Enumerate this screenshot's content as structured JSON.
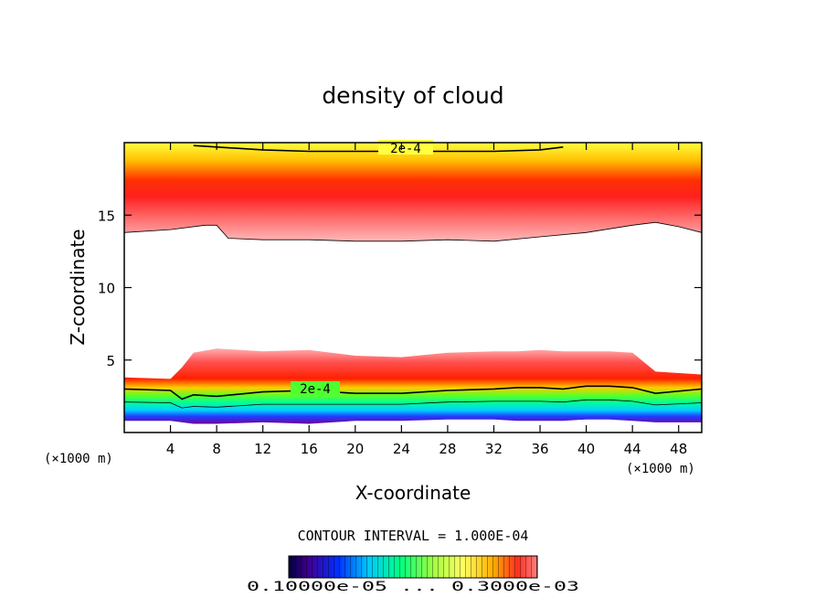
{
  "chart_data": {
    "type": "heatmap",
    "title": "density of cloud",
    "xlabel": "X-coordinate",
    "ylabel": "Z-coordinate",
    "x_unit_label": "(×1000 m)",
    "xlim": [
      0,
      50
    ],
    "ylim": [
      0,
      20
    ],
    "x_ticks": [
      4,
      8,
      12,
      16,
      20,
      24,
      28,
      32,
      36,
      40,
      44,
      48
    ],
    "y_ticks": [
      5,
      10,
      15
    ],
    "contour_interval_text": "CONTOUR INTERVAL = 1.000E-04",
    "contour_label": "2e-4",
    "colorbar_labels_text": "0.10000e-05 ... 0.3000e-03",
    "colorbar_range": [
      1e-06,
      0.0003
    ],
    "upper_layer": {
      "x": [
        0,
        4,
        7,
        8,
        9,
        12,
        16,
        20,
        24,
        28,
        32,
        36,
        40,
        44,
        46,
        48,
        50
      ],
      "bottom": [
        13.8,
        14.0,
        14.3,
        14.3,
        13.4,
        13.3,
        13.3,
        13.2,
        13.2,
        13.3,
        13.2,
        13.5,
        13.8,
        14.3,
        14.5,
        14.2,
        13.8
      ],
      "top": [
        20,
        20,
        20,
        20,
        20,
        20,
        20,
        20,
        20,
        20,
        20,
        20,
        20,
        20,
        20,
        20,
        20
      ],
      "peak_z": [
        16.0,
        16.1,
        16.3,
        16.3,
        15.8,
        15.7,
        15.6,
        15.6,
        15.6,
        15.6,
        15.6,
        15.7,
        15.8,
        16.2,
        16.5,
        16.2,
        15.9
      ]
    },
    "lower_layer": {
      "x": [
        0,
        4,
        5,
        6,
        8,
        12,
        16,
        20,
        24,
        28,
        32,
        34,
        36,
        38,
        40,
        42,
        44,
        46,
        50
      ],
      "top": [
        3.8,
        3.7,
        4.5,
        5.5,
        5.8,
        5.6,
        5.7,
        5.3,
        5.2,
        5.5,
        5.6,
        5.6,
        5.7,
        5.6,
        5.6,
        5.6,
        5.5,
        4.2,
        4.0
      ],
      "contour_2e4": [
        3.0,
        2.9,
        2.3,
        2.6,
        2.5,
        2.8,
        2.9,
        2.7,
        2.7,
        2.9,
        3.0,
        3.1,
        3.1,
        3.0,
        3.2,
        3.2,
        3.1,
        2.7,
        3.0
      ],
      "bottom": [
        0.8,
        0.8,
        0.7,
        0.6,
        0.6,
        0.7,
        0.6,
        0.8,
        0.8,
        0.9,
        0.9,
        0.8,
        0.8,
        0.8,
        0.9,
        0.9,
        0.8,
        0.7,
        0.7
      ]
    },
    "upper_contour_2e4": {
      "x": [
        6,
        8,
        12,
        16,
        20,
        24,
        28,
        32,
        36,
        38
      ],
      "z": [
        19.8,
        19.7,
        19.5,
        19.4,
        19.4,
        19.4,
        19.4,
        19.4,
        19.5,
        19.7
      ]
    }
  }
}
